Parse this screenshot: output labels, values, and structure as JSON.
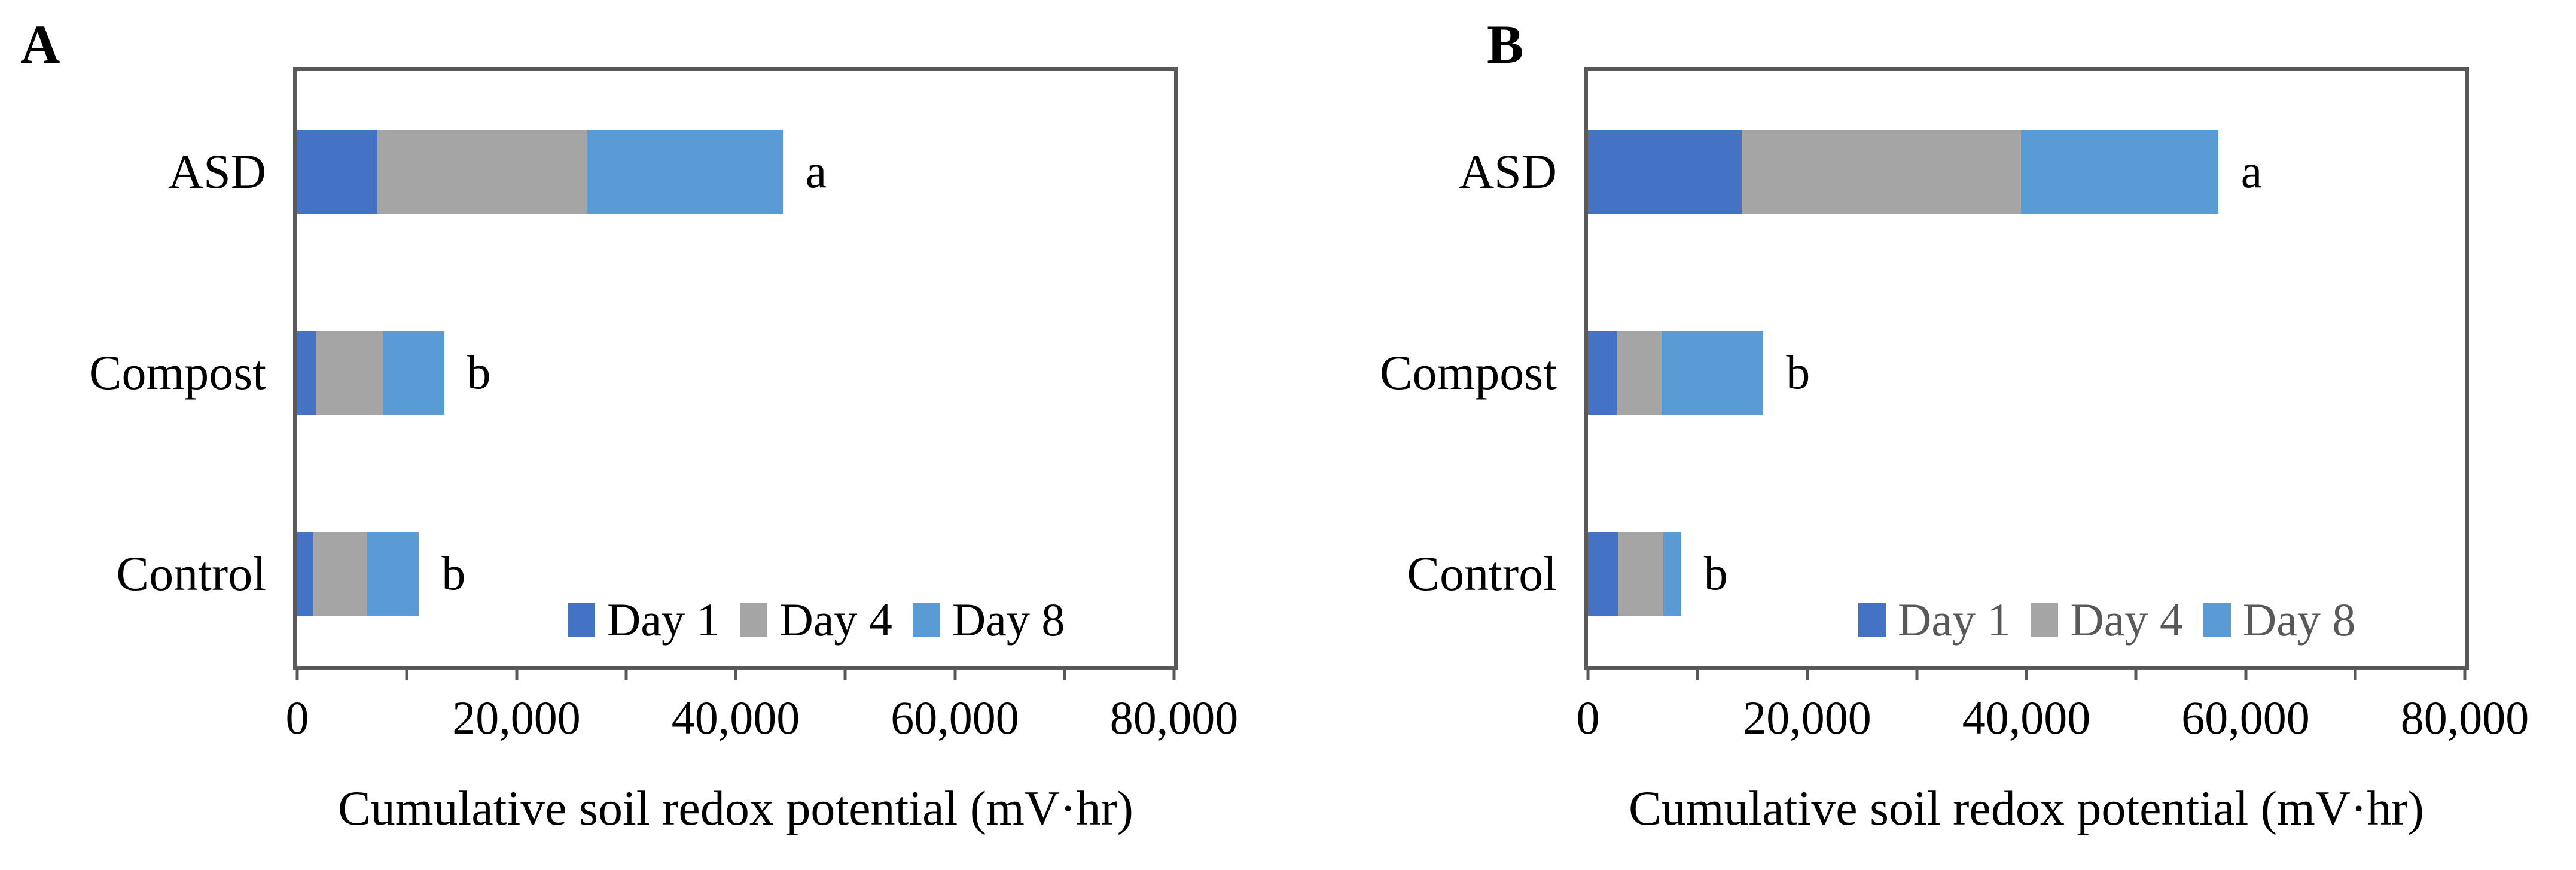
{
  "styles": {
    "axis_color": "#595959",
    "panel_a_legend_text_color": "#000000",
    "panel_b_legend_text_color": "#595959",
    "day1_color": "#4472C4",
    "day4_color": "#A5A5A5",
    "day8_color": "#5B9BD5"
  },
  "chart_data": [
    {
      "type": "bar",
      "orientation": "horizontal",
      "stacked": true,
      "panel_label": "A",
      "categories": [
        "ASD",
        "Compost",
        "Control"
      ],
      "series": [
        {
          "name": "Day 1",
          "color": "#4472C4",
          "values": [
            7300,
            1700,
            1500
          ]
        },
        {
          "name": "Day 4",
          "color": "#A5A5A5",
          "values": [
            19100,
            6100,
            4900
          ]
        },
        {
          "name": "Day 8",
          "color": "#5B9BD5",
          "values": [
            17900,
            5600,
            4700
          ]
        }
      ],
      "totals": [
        44300,
        13400,
        11100
      ],
      "significance_letters": [
        "a",
        "b",
        "b"
      ],
      "xlabel": "Cumulative soil redox potential (mV·hr)",
      "xlim": [
        0,
        80000
      ],
      "x_major_tick_interval": 20000,
      "x_minor_tick_interval": 10000,
      "x_tick_labels": [
        "0",
        "20,000",
        "40,000",
        "60,000",
        "80,000"
      ],
      "grid": false,
      "legend_position": "inside-bottom-right",
      "legend_text_color": "#000000"
    },
    {
      "type": "bar",
      "orientation": "horizontal",
      "stacked": true,
      "panel_label": "B",
      "categories": [
        "ASD",
        "Compost",
        "Control"
      ],
      "series": [
        {
          "name": "Day 1",
          "color": "#4472C4",
          "values": [
            14000,
            2600,
            2800
          ]
        },
        {
          "name": "Day 4",
          "color": "#A5A5A5",
          "values": [
            25500,
            4100,
            4100
          ]
        },
        {
          "name": "Day 8",
          "color": "#5B9BD5",
          "values": [
            18000,
            9300,
            1600
          ]
        }
      ],
      "totals": [
        57500,
        16000,
        8500
      ],
      "significance_letters": [
        "a",
        "b",
        "b"
      ],
      "xlabel": "Cumulative soil redox potential (mV·hr)",
      "xlim": [
        0,
        80000
      ],
      "x_major_tick_interval": 20000,
      "x_minor_tick_interval": 10000,
      "x_tick_labels": [
        "0",
        "20,000",
        "40,000",
        "60,000",
        "80,000"
      ],
      "grid": false,
      "legend_position": "inside-bottom-right",
      "legend_text_color": "#595959"
    }
  ]
}
